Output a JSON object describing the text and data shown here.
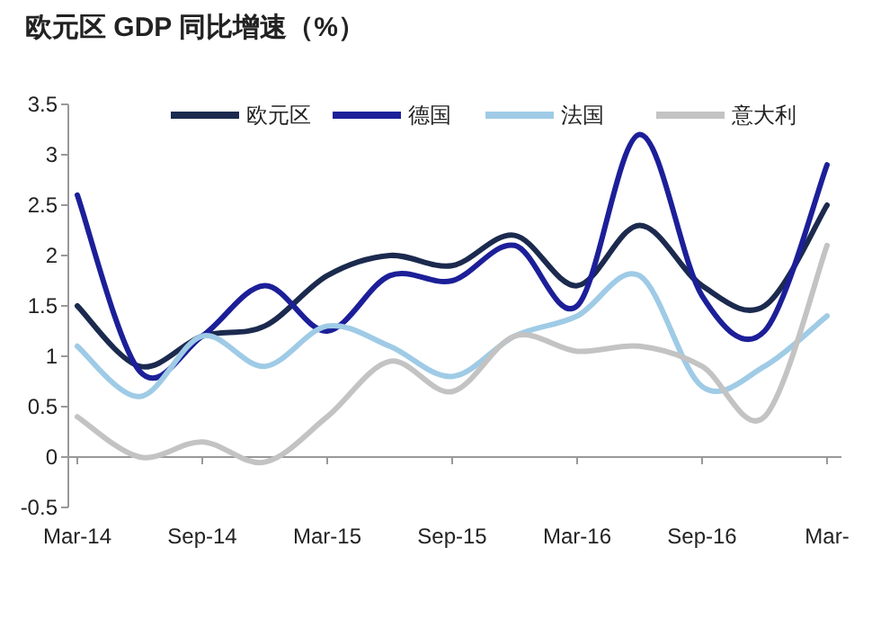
{
  "chart_data": {
    "type": "line",
    "title": "欧元区 GDP 同比增速（%）",
    "categories": [
      "Mar-14",
      null,
      "Sep-14",
      null,
      "Mar-15",
      null,
      "Sep-15",
      null,
      "Mar-16",
      null,
      "Sep-16",
      null,
      "Mar-"
    ],
    "series": [
      {
        "name": "欧元区",
        "color": "#1b2a4e",
        "values": [
          1.5,
          0.9,
          1.2,
          1.3,
          1.8,
          2.0,
          1.9,
          2.2,
          1.7,
          2.3,
          1.7,
          1.5,
          2.5
        ]
      },
      {
        "name": "德国",
        "color": "#1c1f98",
        "values": [
          2.6,
          0.85,
          1.2,
          1.7,
          1.25,
          1.8,
          1.75,
          2.1,
          1.5,
          3.2,
          1.6,
          1.25,
          2.9
        ]
      },
      {
        "name": "法国",
        "color": "#9fcbe6",
        "values": [
          1.1,
          0.6,
          1.2,
          0.9,
          1.3,
          1.1,
          0.8,
          1.2,
          1.4,
          1.8,
          0.7,
          0.9,
          1.4
        ]
      },
      {
        "name": "意大利",
        "color": "#c3c3c3",
        "values": [
          0.4,
          0.0,
          0.15,
          -0.05,
          0.4,
          0.95,
          0.65,
          1.2,
          1.05,
          1.1,
          0.9,
          0.4,
          2.1
        ]
      }
    ],
    "ylim": [
      -0.5,
      3.5
    ],
    "yticks": [
      -0.5,
      0,
      0.5,
      1,
      1.5,
      2,
      2.5,
      3,
      3.5
    ],
    "legend": "top",
    "marker": "none",
    "line_style": "solid"
  }
}
